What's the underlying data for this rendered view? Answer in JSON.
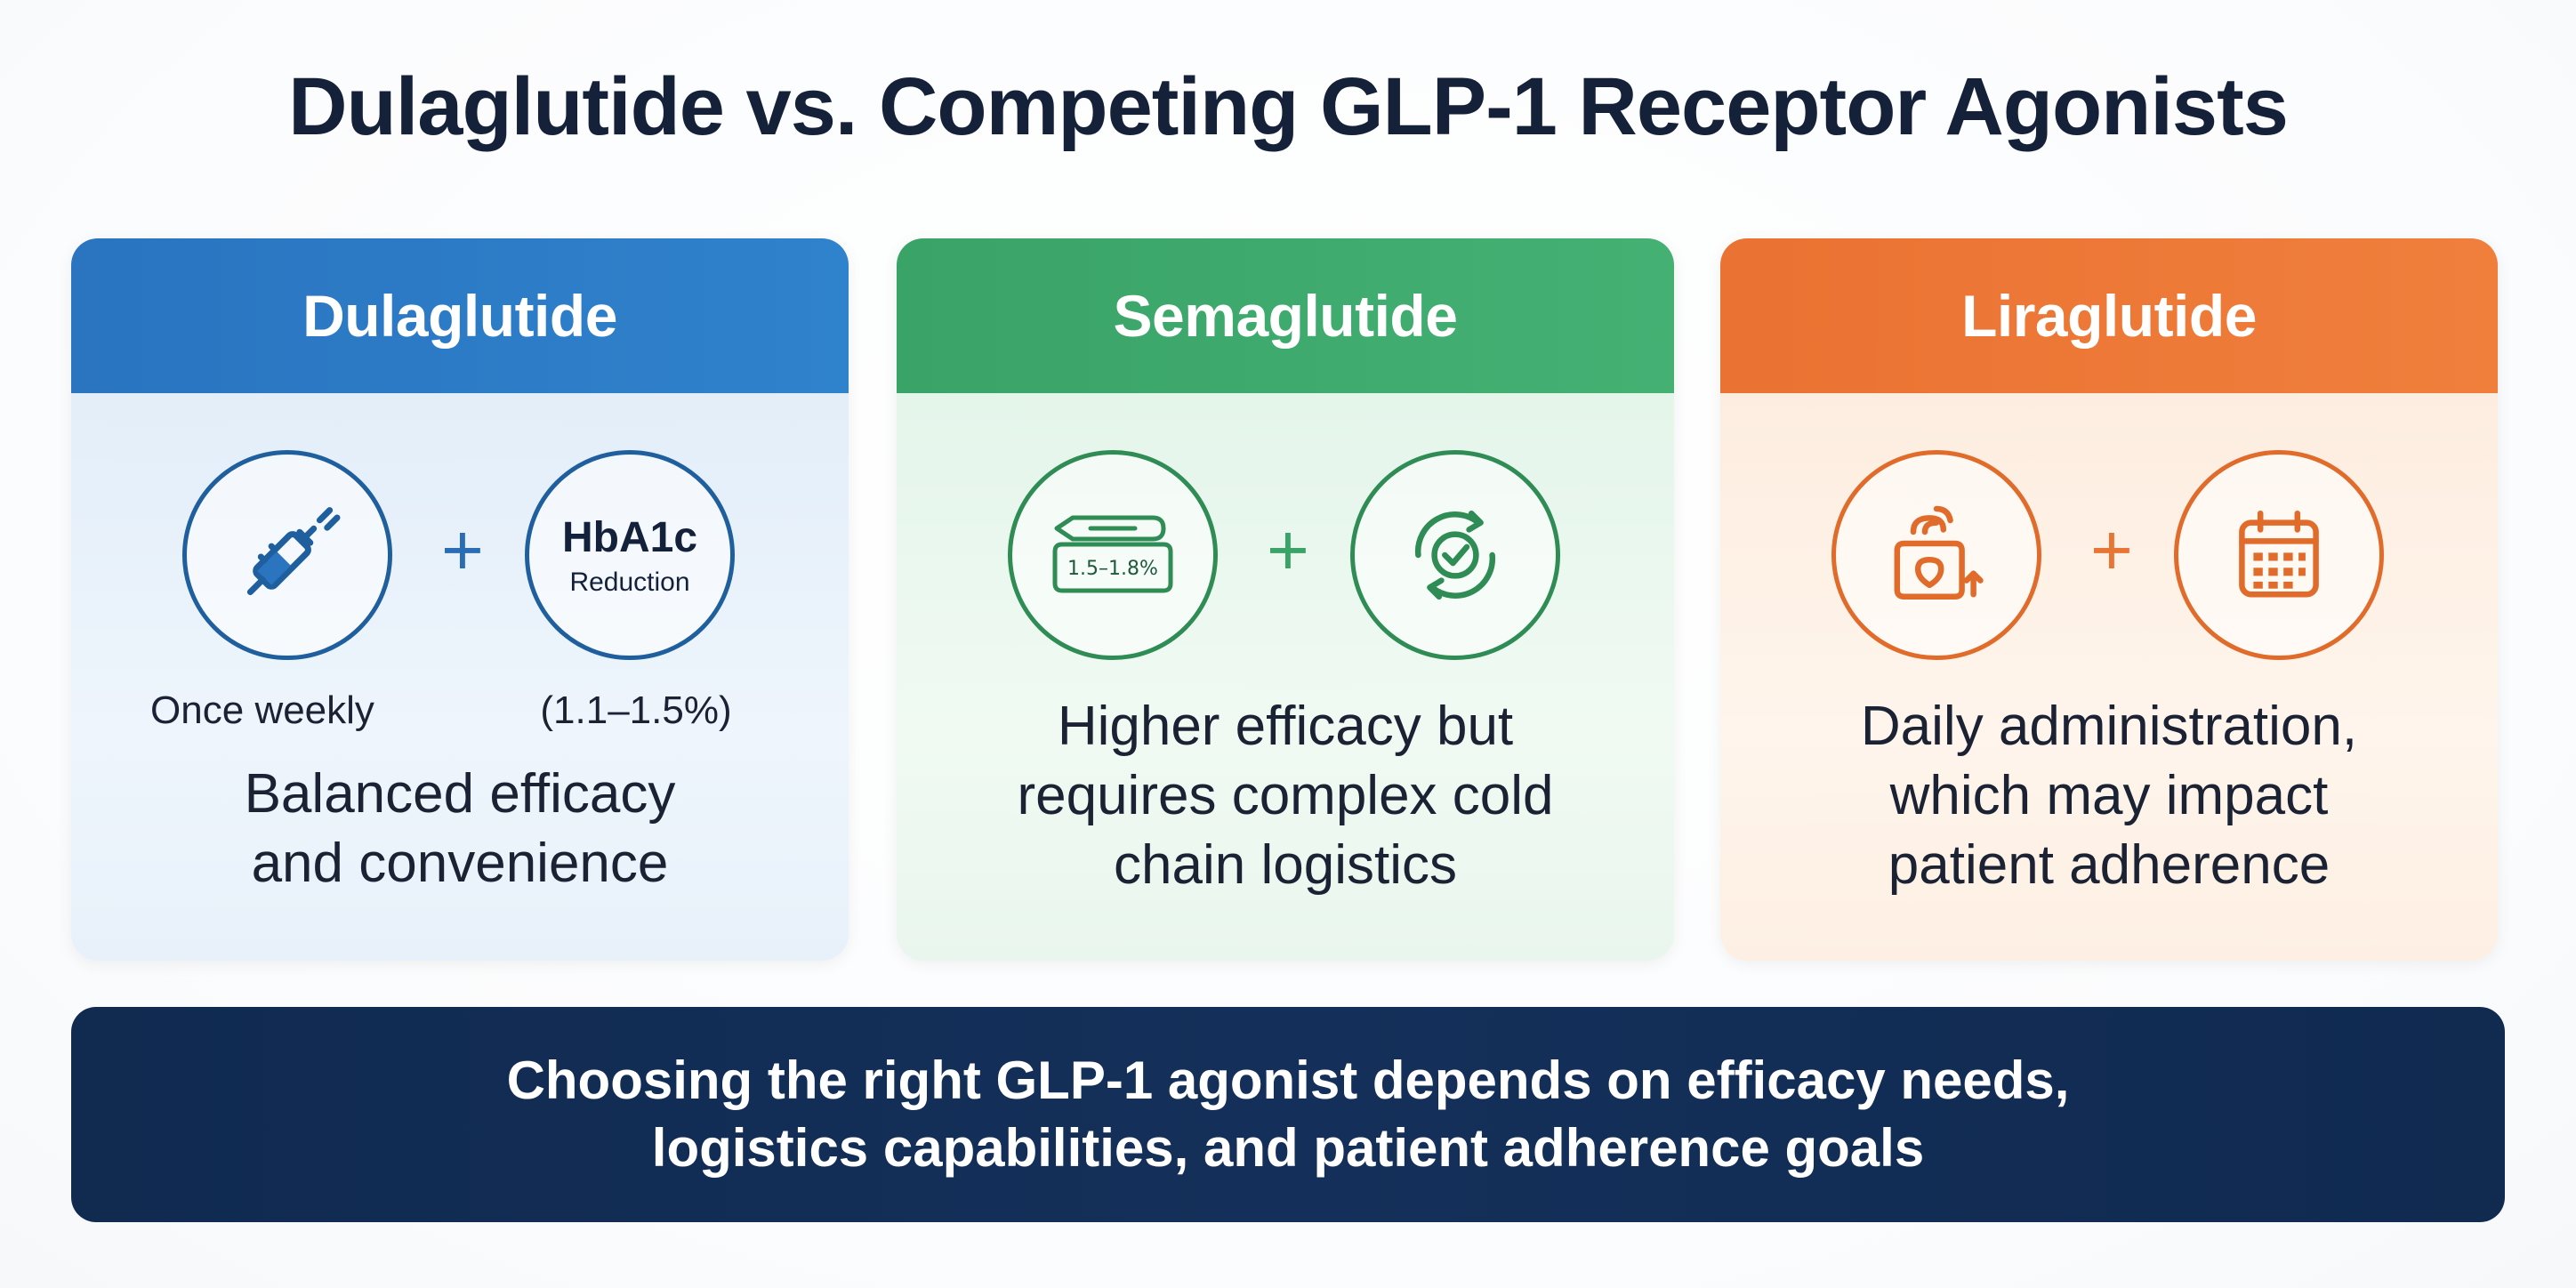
{
  "title": "Dulaglutide vs. Competing GLP-1 Receptor Agonists",
  "cards": [
    {
      "name": "Dulaglutide",
      "color": "#2f82cc",
      "left_icon": "syringe-icon",
      "right_badge": {
        "main": "HbA1c",
        "sub": "Reduction"
      },
      "left_caption": "Once weekly",
      "right_caption": "(1.1–1.5%)",
      "description": [
        "Balanced efficacy",
        "and convenience"
      ]
    },
    {
      "name": "Semaglutide",
      "color": "#44b173",
      "left_icon": "pen-injector-icon",
      "left_icon_label": "1.5–1.8%",
      "right_icon": "cycle-check-icon",
      "description": [
        "Higher efficacy but",
        "requires complex cold",
        "chain logistics"
      ]
    },
    {
      "name": "Liraglutide",
      "color": "#f07f3c",
      "left_icon": "daily-package-icon",
      "right_icon": "calendar-icon",
      "description": [
        "Daily administration,",
        "which may impact",
        "patient adherence"
      ]
    }
  ],
  "banner": [
    "Choosing the right GLP-1 agonist depends on efficacy needs,",
    "logistics capabilities, and patient adherence goals"
  ]
}
